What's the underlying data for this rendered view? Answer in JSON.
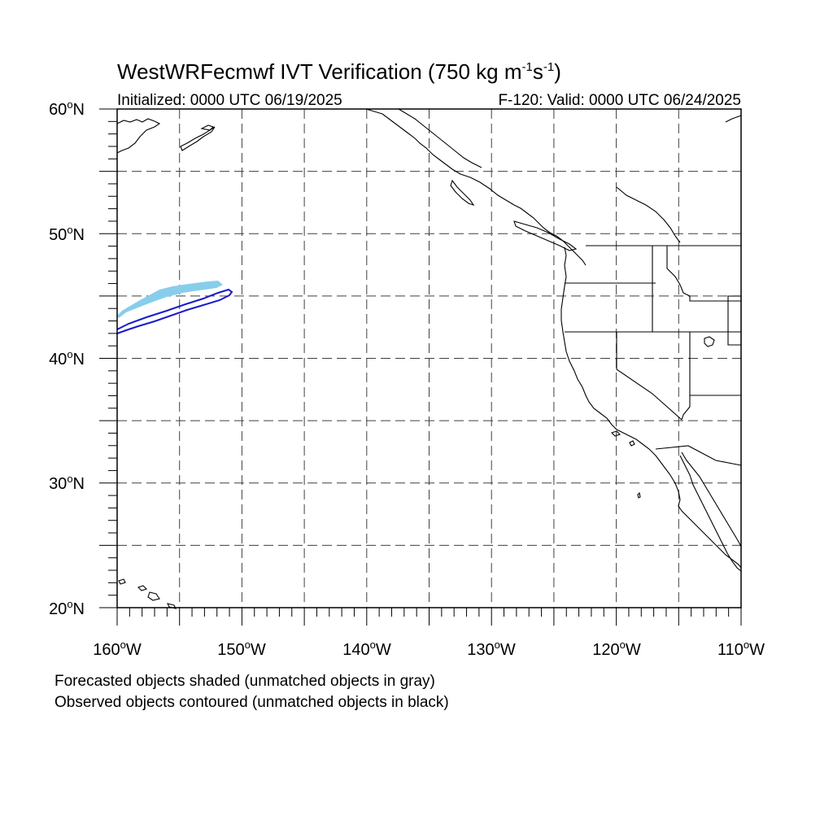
{
  "title": {
    "main_prefix": "WestWRFecmwf IVT Verification (750 kg m",
    "exp1": "-1",
    "mid": "s",
    "exp2": "-1",
    "suffix": ")"
  },
  "subtitle_left": "Initialized: 0000 UTC 06/19/2025",
  "subtitle_right": "F-120: Valid: 0000 UTC 06/24/2025",
  "lat_labels": [
    {
      "deg": "60",
      "suffix": "N"
    },
    {
      "deg": "50",
      "suffix": "N"
    },
    {
      "deg": "40",
      "suffix": "N"
    },
    {
      "deg": "30",
      "suffix": "N"
    },
    {
      "deg": "20",
      "suffix": "N"
    }
  ],
  "lon_labels": [
    {
      "deg": "160",
      "suffix": "W"
    },
    {
      "deg": "150",
      "suffix": "W"
    },
    {
      "deg": "140",
      "suffix": "W"
    },
    {
      "deg": "130",
      "suffix": "W"
    },
    {
      "deg": "120",
      "suffix": "W"
    },
    {
      "deg": "110",
      "suffix": "W"
    }
  ],
  "notes": {
    "forecast": "Forecasted objects shaded (unmatched objects in gray)",
    "observed": "Observed objects contoured (unmatched objects in black)"
  },
  "colors": {
    "forecast_fill": "#87CEEB",
    "observed_contour": "#1a1acd",
    "coastline": "#000000",
    "grid": "#000000"
  },
  "map": {
    "lat_range": [
      20,
      60
    ],
    "lon_range": [
      -160,
      -110
    ],
    "grid_interval_deg": 5,
    "grid_style": "dashed"
  }
}
